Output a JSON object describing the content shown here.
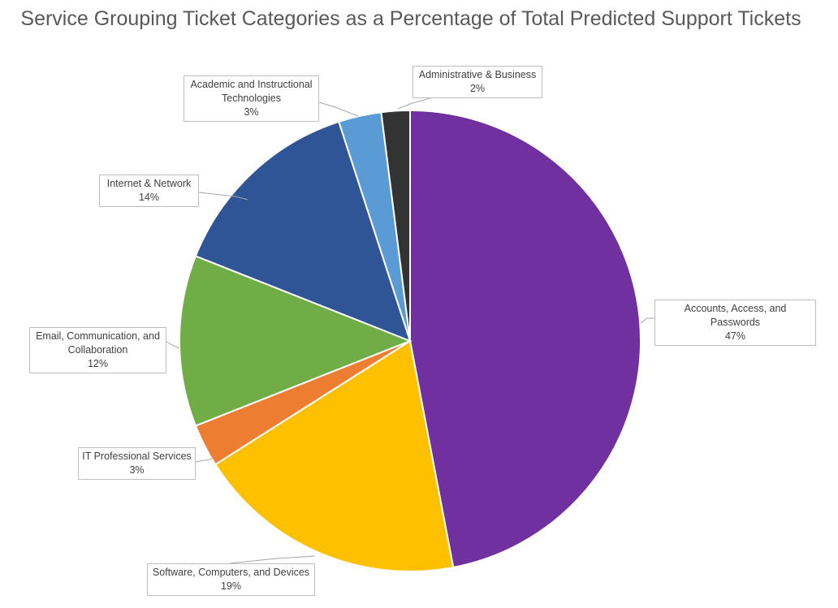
{
  "chart_data": {
    "type": "pie",
    "title": "Service Grouping Ticket Categories as a Percentage of Total Predicted Support Tickets",
    "slices": [
      {
        "label": "Accounts, Access, and Passwords",
        "value": 47,
        "value_label": "47%",
        "color": "#7030A0"
      },
      {
        "label": "Software, Computers, and Devices",
        "value": 19,
        "value_label": "19%",
        "color": "#FFC000"
      },
      {
        "label": "IT Professional Services",
        "value": 3,
        "value_label": "3%",
        "color": "#ED7D31"
      },
      {
        "label": "Email, Communication, and Collaboration",
        "value": 12,
        "value_label": "12%",
        "color": "#70AD47"
      },
      {
        "label": "Internet & Network",
        "value": 14,
        "value_label": "14%",
        "color": "#2F5597"
      },
      {
        "label": "Academic and Instructional Technologies",
        "value": 3,
        "value_label": "3%",
        "color": "#5B9BD5"
      },
      {
        "label": "Administrative & Business",
        "value": 2,
        "value_label": "2%",
        "color": "#333333"
      }
    ],
    "legend": "none",
    "data_labels": "callouts"
  }
}
